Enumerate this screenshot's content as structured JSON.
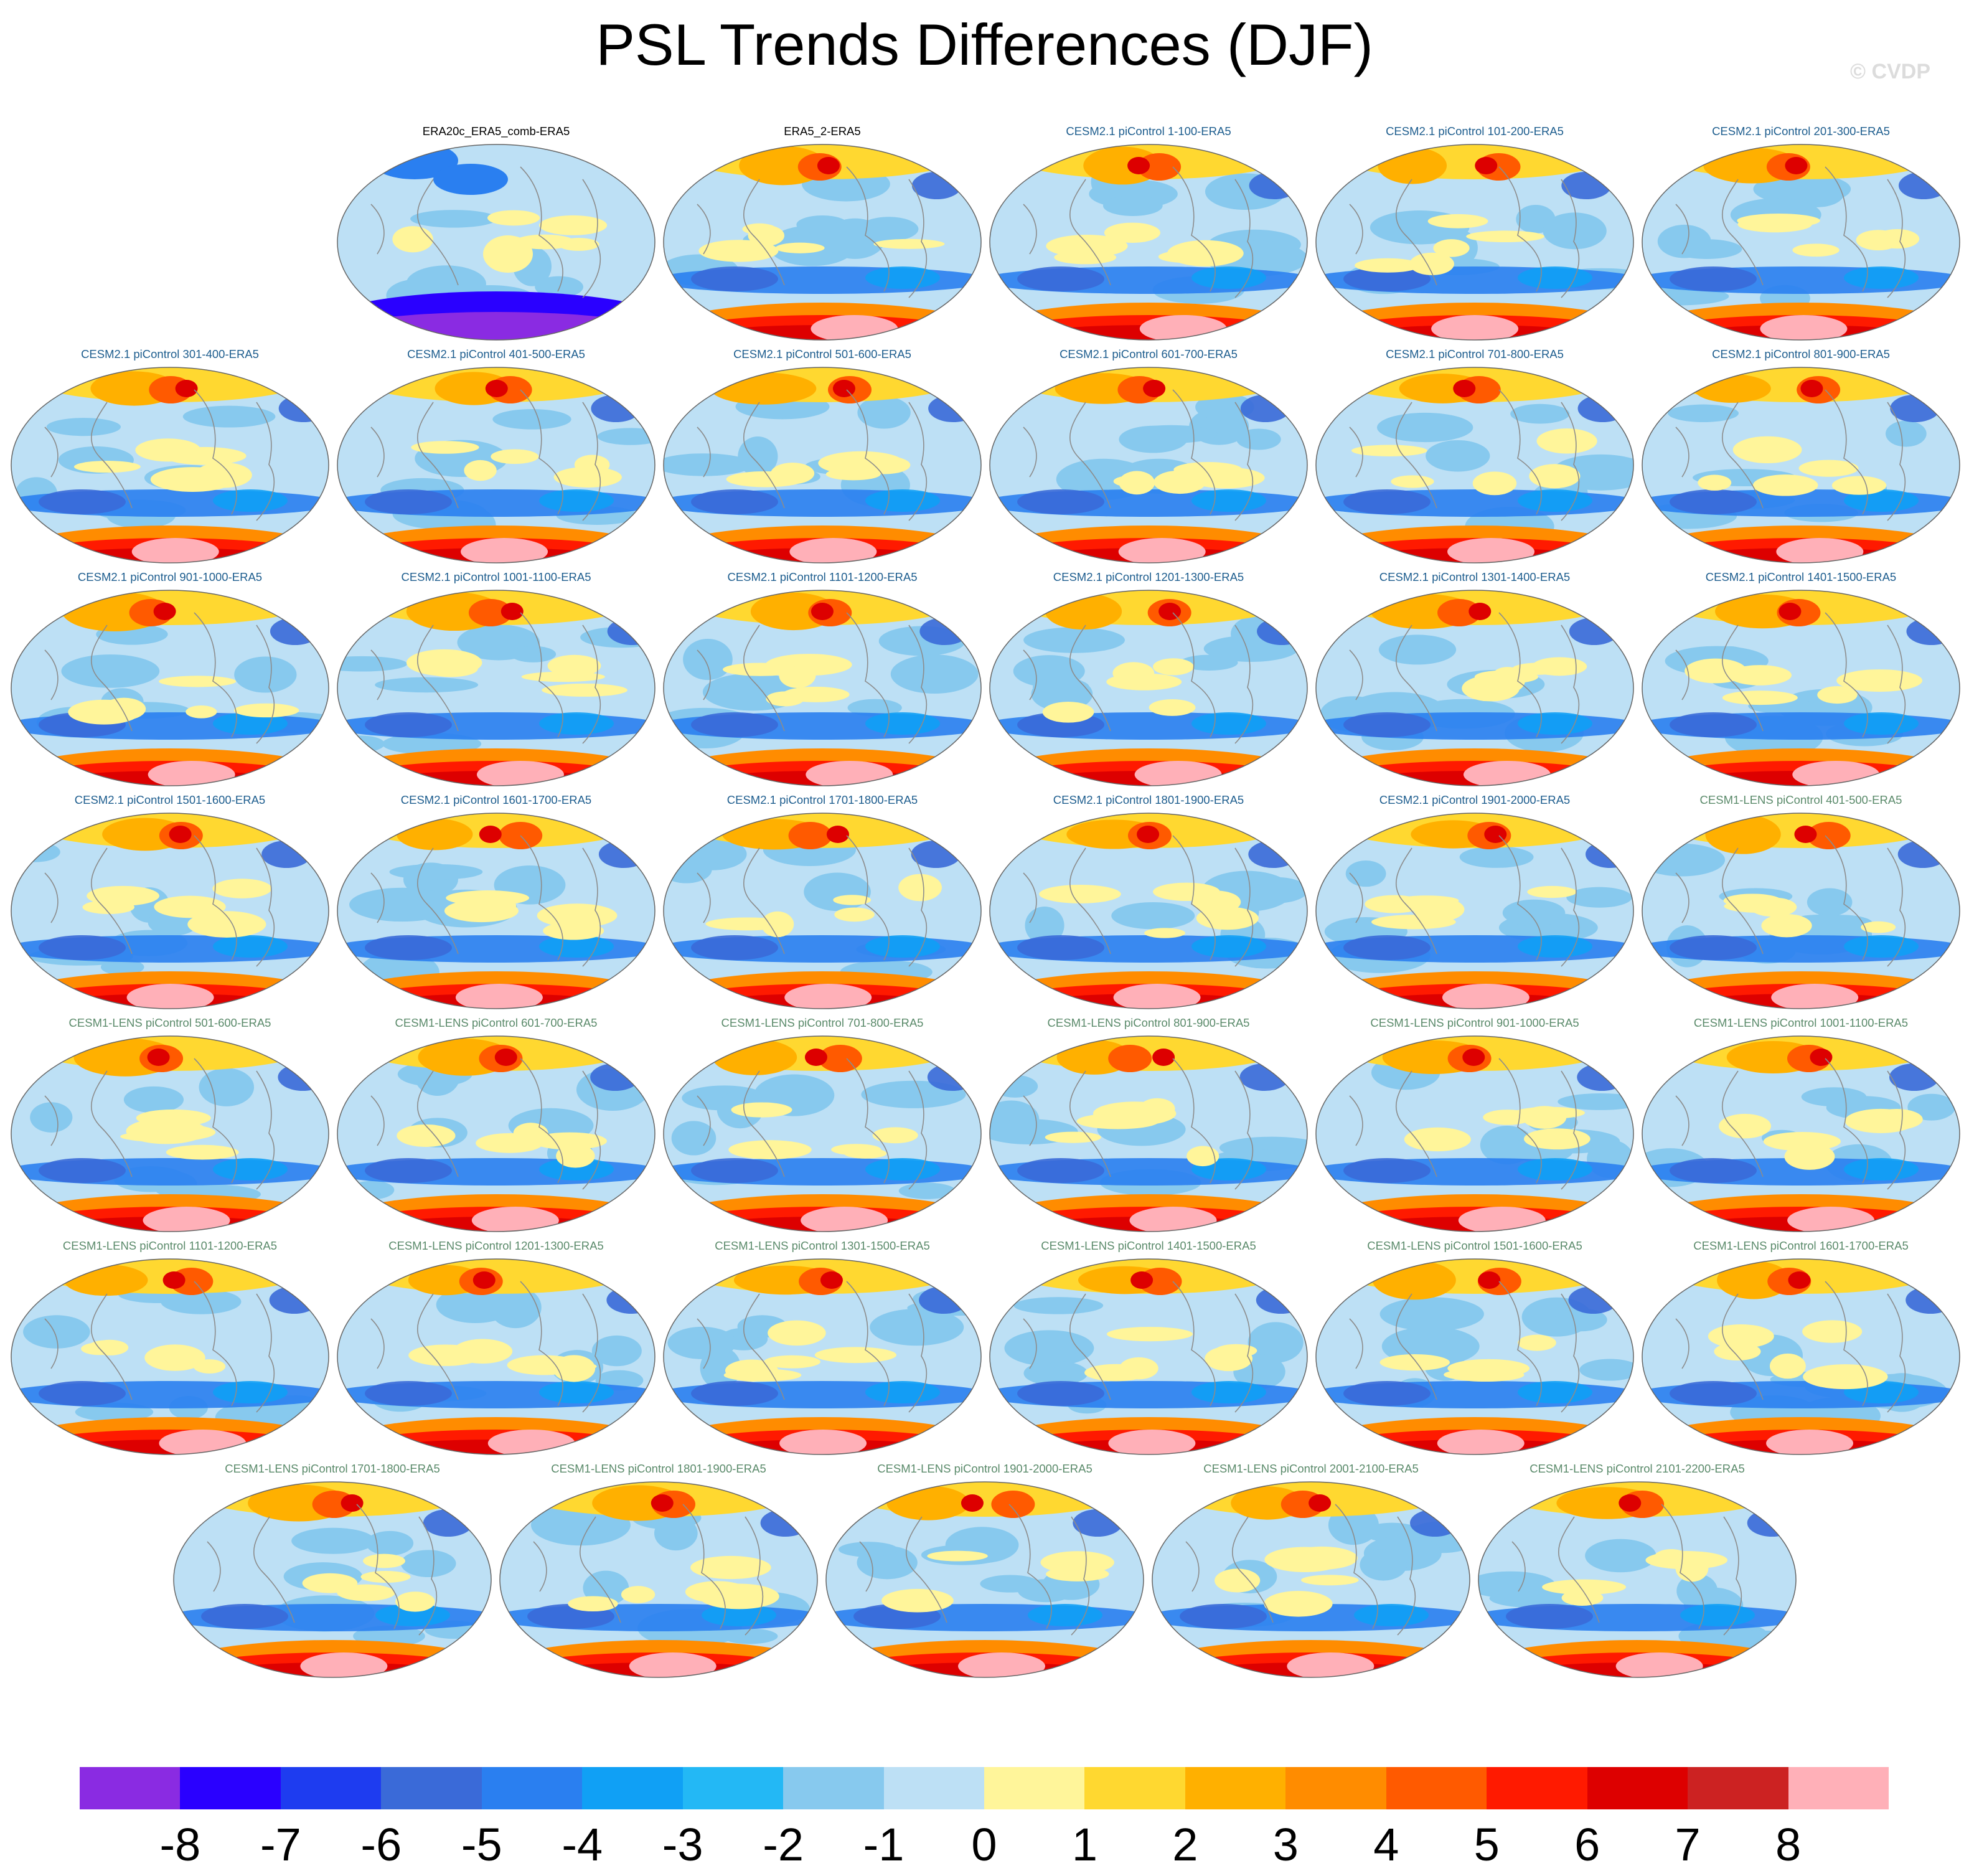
{
  "title": "PSL Trends Differences (DJF)",
  "watermark": "© CVDP",
  "panels": [
    {
      "title": "ERA20c_ERA5_comb-ERA5",
      "group": "obs"
    },
    {
      "title": "ERA5_2-ERA5",
      "group": "obs"
    },
    {
      "title": "CESM2.1 piControl 1-100-ERA5",
      "group": "c2"
    },
    {
      "title": "CESM2.1 piControl 101-200-ERA5",
      "group": "c2"
    },
    {
      "title": "CESM2.1 piControl 201-300-ERA5",
      "group": "c2"
    },
    {
      "title": "CESM2.1 piControl 301-400-ERA5",
      "group": "c2"
    },
    {
      "title": "CESM2.1 piControl 401-500-ERA5",
      "group": "c2"
    },
    {
      "title": "CESM2.1 piControl 501-600-ERA5",
      "group": "c2"
    },
    {
      "title": "CESM2.1 piControl 601-700-ERA5",
      "group": "c2"
    },
    {
      "title": "CESM2.1 piControl 701-800-ERA5",
      "group": "c2"
    },
    {
      "title": "CESM2.1 piControl 801-900-ERA5",
      "group": "c2"
    },
    {
      "title": "CESM2.1 piControl 901-1000-ERA5",
      "group": "c2"
    },
    {
      "title": "CESM2.1 piControl 1001-1100-ERA5",
      "group": "c2"
    },
    {
      "title": "CESM2.1 piControl 1101-1200-ERA5",
      "group": "c2"
    },
    {
      "title": "CESM2.1 piControl 1201-1300-ERA5",
      "group": "c2"
    },
    {
      "title": "CESM2.1 piControl 1301-1400-ERA5",
      "group": "c2"
    },
    {
      "title": "CESM2.1 piControl 1401-1500-ERA5",
      "group": "c2"
    },
    {
      "title": "CESM2.1 piControl 1501-1600-ERA5",
      "group": "c2"
    },
    {
      "title": "CESM2.1 piControl 1601-1700-ERA5",
      "group": "c2"
    },
    {
      "title": "CESM2.1 piControl 1701-1800-ERA5",
      "group": "c2"
    },
    {
      "title": "CESM2.1 piControl 1801-1900-ERA5",
      "group": "c2"
    },
    {
      "title": "CESM2.1 piControl 1901-2000-ERA5",
      "group": "c2"
    },
    {
      "title": "CESM1-LENS piControl 401-500-ERA5",
      "group": "c1"
    },
    {
      "title": "CESM1-LENS piControl 501-600-ERA5",
      "group": "c1"
    },
    {
      "title": "CESM1-LENS piControl 601-700-ERA5",
      "group": "c1"
    },
    {
      "title": "CESM1-LENS piControl 701-800-ERA5",
      "group": "c1"
    },
    {
      "title": "CESM1-LENS piControl 801-900-ERA5",
      "group": "c1"
    },
    {
      "title": "CESM1-LENS piControl 901-1000-ERA5",
      "group": "c1"
    },
    {
      "title": "CESM1-LENS piControl 1001-1100-ERA5",
      "group": "c1"
    },
    {
      "title": "CESM1-LENS piControl 1101-1200-ERA5",
      "group": "c1"
    },
    {
      "title": "CESM1-LENS piControl 1201-1300-ERA5",
      "group": "c1"
    },
    {
      "title": "CESM1-LENS piControl 1301-1500-ERA5",
      "group": "c1"
    },
    {
      "title": "CESM1-LENS piControl 1401-1500-ERA5",
      "group": "c1"
    },
    {
      "title": "CESM1-LENS piControl 1501-1600-ERA5",
      "group": "c1"
    },
    {
      "title": "CESM1-LENS piControl 1601-1700-ERA5",
      "group": "c1"
    },
    {
      "title": "CESM1-LENS piControl 1701-1800-ERA5",
      "group": "c1"
    },
    {
      "title": "CESM1-LENS piControl 1801-1900-ERA5",
      "group": "c1"
    },
    {
      "title": "CESM1-LENS piControl 1901-2000-ERA5",
      "group": "c1"
    },
    {
      "title": "CESM1-LENS piControl 2001-2100-ERA5",
      "group": "c1"
    },
    {
      "title": "CESM1-LENS piControl 2101-2200-ERA5",
      "group": "c1"
    }
  ],
  "colorbar": {
    "labels": [
      "-8",
      "-7",
      "-6",
      "-5",
      "-4",
      "-3",
      "-2",
      "-1",
      "0",
      "1",
      "2",
      "3",
      "4",
      "5",
      "6",
      "7",
      "8"
    ],
    "colors": [
      "#8a2be2",
      "#2a00ff",
      "#1e3cf0",
      "#3a6ad8",
      "#2a7ff0",
      "#10a0f5",
      "#23b8f5",
      "#87c9ee",
      "#bde0f5",
      "#fff59a",
      "#ffd830",
      "#ffb000",
      "#ff8c00",
      "#ff5a00",
      "#ff1a00",
      "#dd0000",
      "#cc2222",
      "#ffb0b8"
    ]
  }
}
